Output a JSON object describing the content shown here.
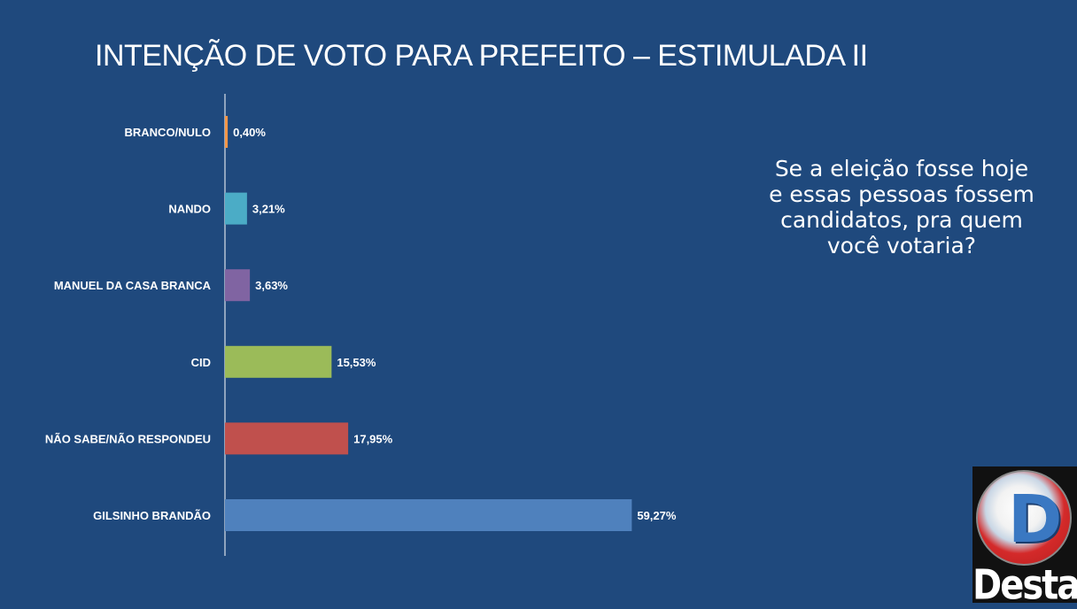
{
  "title": "INTENÇÃO DE VOTO PARA PREFEITO – ESTIMULADA II",
  "question": "Se a eleição fosse hoje e essas pessoas fossem candidatos, pra quem você votaria?",
  "logo": {
    "text": "Destak",
    "letter": "D"
  },
  "chart_data": {
    "type": "bar",
    "orientation": "horizontal",
    "categories": [
      "BRANCO/NULO",
      "NANDO",
      "MANUEL DA CASA BRANCA",
      "CID",
      "NÃO SABE/NÃO RESPONDEU",
      "GILSINHO BRANDÃO"
    ],
    "values": [
      0.4,
      3.21,
      3.63,
      15.53,
      17.95,
      59.27
    ],
    "value_labels": [
      "0,40%",
      "3,21%",
      "3,63%",
      "15,53%",
      "17,95%",
      "59,27%"
    ],
    "colors": [
      "#f79646",
      "#4bacc6",
      "#8064a2",
      "#9bbb59",
      "#c0504d",
      "#4f81bd"
    ],
    "title": "INTENÇÃO DE VOTO PARA PREFEITO – ESTIMULADA II",
    "xlabel": "",
    "ylabel": "",
    "grid": false,
    "legend": "none"
  }
}
